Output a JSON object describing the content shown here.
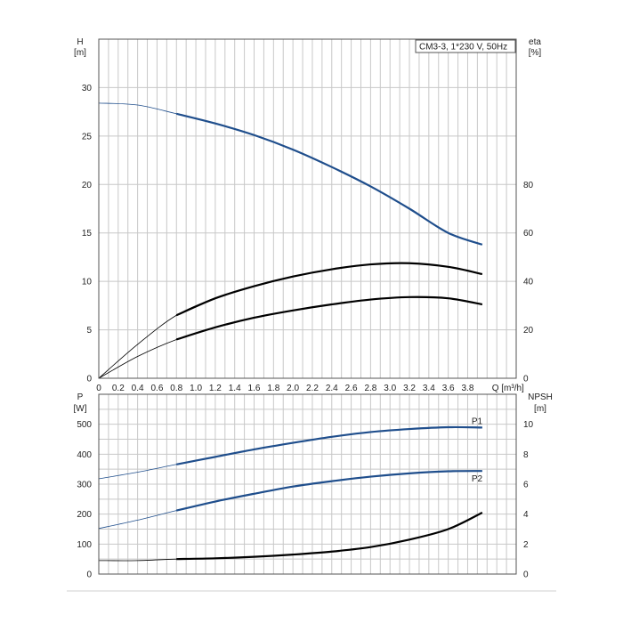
{
  "chart_data": [
    {
      "type": "line",
      "legend_text": "CM3-3, 1*230 V, 50Hz",
      "legend_position": "top-right",
      "grid": true,
      "x_axis": {
        "label": "Q [m³/h]",
        "range": [
          0,
          4.3
        ],
        "ticks": [
          "0",
          "0.2",
          "0.4",
          "0.6",
          "0.8",
          "1.0",
          "1.2",
          "1.4",
          "1.6",
          "1.8",
          "2.0",
          "2.2",
          "2.4",
          "2.6",
          "2.8",
          "3.0",
          "3.2",
          "3.4",
          "3.6",
          "3.8"
        ]
      },
      "y_left": {
        "label_top": "H",
        "label_unit": "[m]",
        "range": [
          0,
          35
        ],
        "ticks": [
          "0",
          "5",
          "10",
          "15",
          "20",
          "25",
          "30"
        ]
      },
      "y_right": {
        "label_top": "eta",
        "label_unit": "[%]",
        "range": [
          0,
          140
        ],
        "ticks": [
          "0",
          "20",
          "40",
          "60",
          "80"
        ]
      },
      "series": [
        {
          "axis": "left",
          "color": "#1f4e8c",
          "points": [
            [
              0,
              28.4
            ],
            [
              0.4,
              28.2
            ],
            [
              0.8,
              27.3
            ],
            [
              1.2,
              26.3
            ],
            [
              1.6,
              25.1
            ],
            [
              2.0,
              23.6
            ],
            [
              2.4,
              21.8
            ],
            [
              2.8,
              19.8
            ],
            [
              3.2,
              17.5
            ],
            [
              3.6,
              15.0
            ],
            [
              3.95,
              13.8
            ]
          ]
        },
        {
          "axis": "right",
          "color": "#000000",
          "points": [
            [
              0,
              0
            ],
            [
              0.4,
              14
            ],
            [
              0.8,
              26
            ],
            [
              1.2,
              33
            ],
            [
              1.6,
              38
            ],
            [
              2.0,
              42
            ],
            [
              2.4,
              45
            ],
            [
              2.8,
              47
            ],
            [
              3.2,
              47.5
            ],
            [
              3.6,
              46
            ],
            [
              3.95,
              43
            ]
          ]
        },
        {
          "axis": "right",
          "color": "#000000",
          "points": [
            [
              0,
              0
            ],
            [
              0.4,
              9
            ],
            [
              0.8,
              16
            ],
            [
              1.2,
              21
            ],
            [
              1.6,
              25
            ],
            [
              2.0,
              28
            ],
            [
              2.4,
              30.5
            ],
            [
              2.8,
              32.5
            ],
            [
              3.2,
              33.5
            ],
            [
              3.6,
              33
            ],
            [
              3.95,
              30.5
            ]
          ]
        }
      ]
    },
    {
      "type": "line",
      "grid": true,
      "x_axis": {
        "range": [
          0,
          4.3
        ]
      },
      "y_left": {
        "label_top": "P",
        "label_unit": "[W]",
        "range": [
          0,
          600
        ],
        "ticks": [
          "0",
          "100",
          "200",
          "300",
          "400",
          "500"
        ]
      },
      "y_right": {
        "label_top": "NPSH",
        "label_unit": "[m]",
        "range": [
          0,
          12
        ],
        "ticks": [
          "0",
          "2",
          "4",
          "6",
          "8",
          "10"
        ]
      },
      "series": [
        {
          "name": "P1",
          "axis": "left",
          "color": "#1f4e8c",
          "points": [
            [
              0,
              318
            ],
            [
              0.4,
              340
            ],
            [
              0.8,
              366
            ],
            [
              1.2,
              391
            ],
            [
              1.6,
              416
            ],
            [
              2.0,
              438
            ],
            [
              2.4,
              458
            ],
            [
              2.8,
              474
            ],
            [
              3.2,
              484
            ],
            [
              3.6,
              490
            ],
            [
              3.95,
              489
            ]
          ]
        },
        {
          "name": "P2",
          "axis": "left",
          "color": "#1f4e8c",
          "points": [
            [
              0,
              152
            ],
            [
              0.4,
              180
            ],
            [
              0.8,
              212
            ],
            [
              1.2,
              242
            ],
            [
              1.6,
              268
            ],
            [
              2.0,
              292
            ],
            [
              2.4,
              310
            ],
            [
              2.8,
              325
            ],
            [
              3.2,
              336
            ],
            [
              3.6,
              343
            ],
            [
              3.95,
              344
            ]
          ]
        },
        {
          "axis": "right",
          "color": "#000000",
          "points": [
            [
              0,
              0.9
            ],
            [
              0.4,
              0.9
            ],
            [
              0.8,
              1.0
            ],
            [
              1.2,
              1.05
            ],
            [
              1.6,
              1.15
            ],
            [
              2.0,
              1.3
            ],
            [
              2.4,
              1.5
            ],
            [
              2.8,
              1.8
            ],
            [
              3.2,
              2.3
            ],
            [
              3.6,
              3.0
            ],
            [
              3.95,
              4.1
            ]
          ]
        }
      ]
    }
  ]
}
